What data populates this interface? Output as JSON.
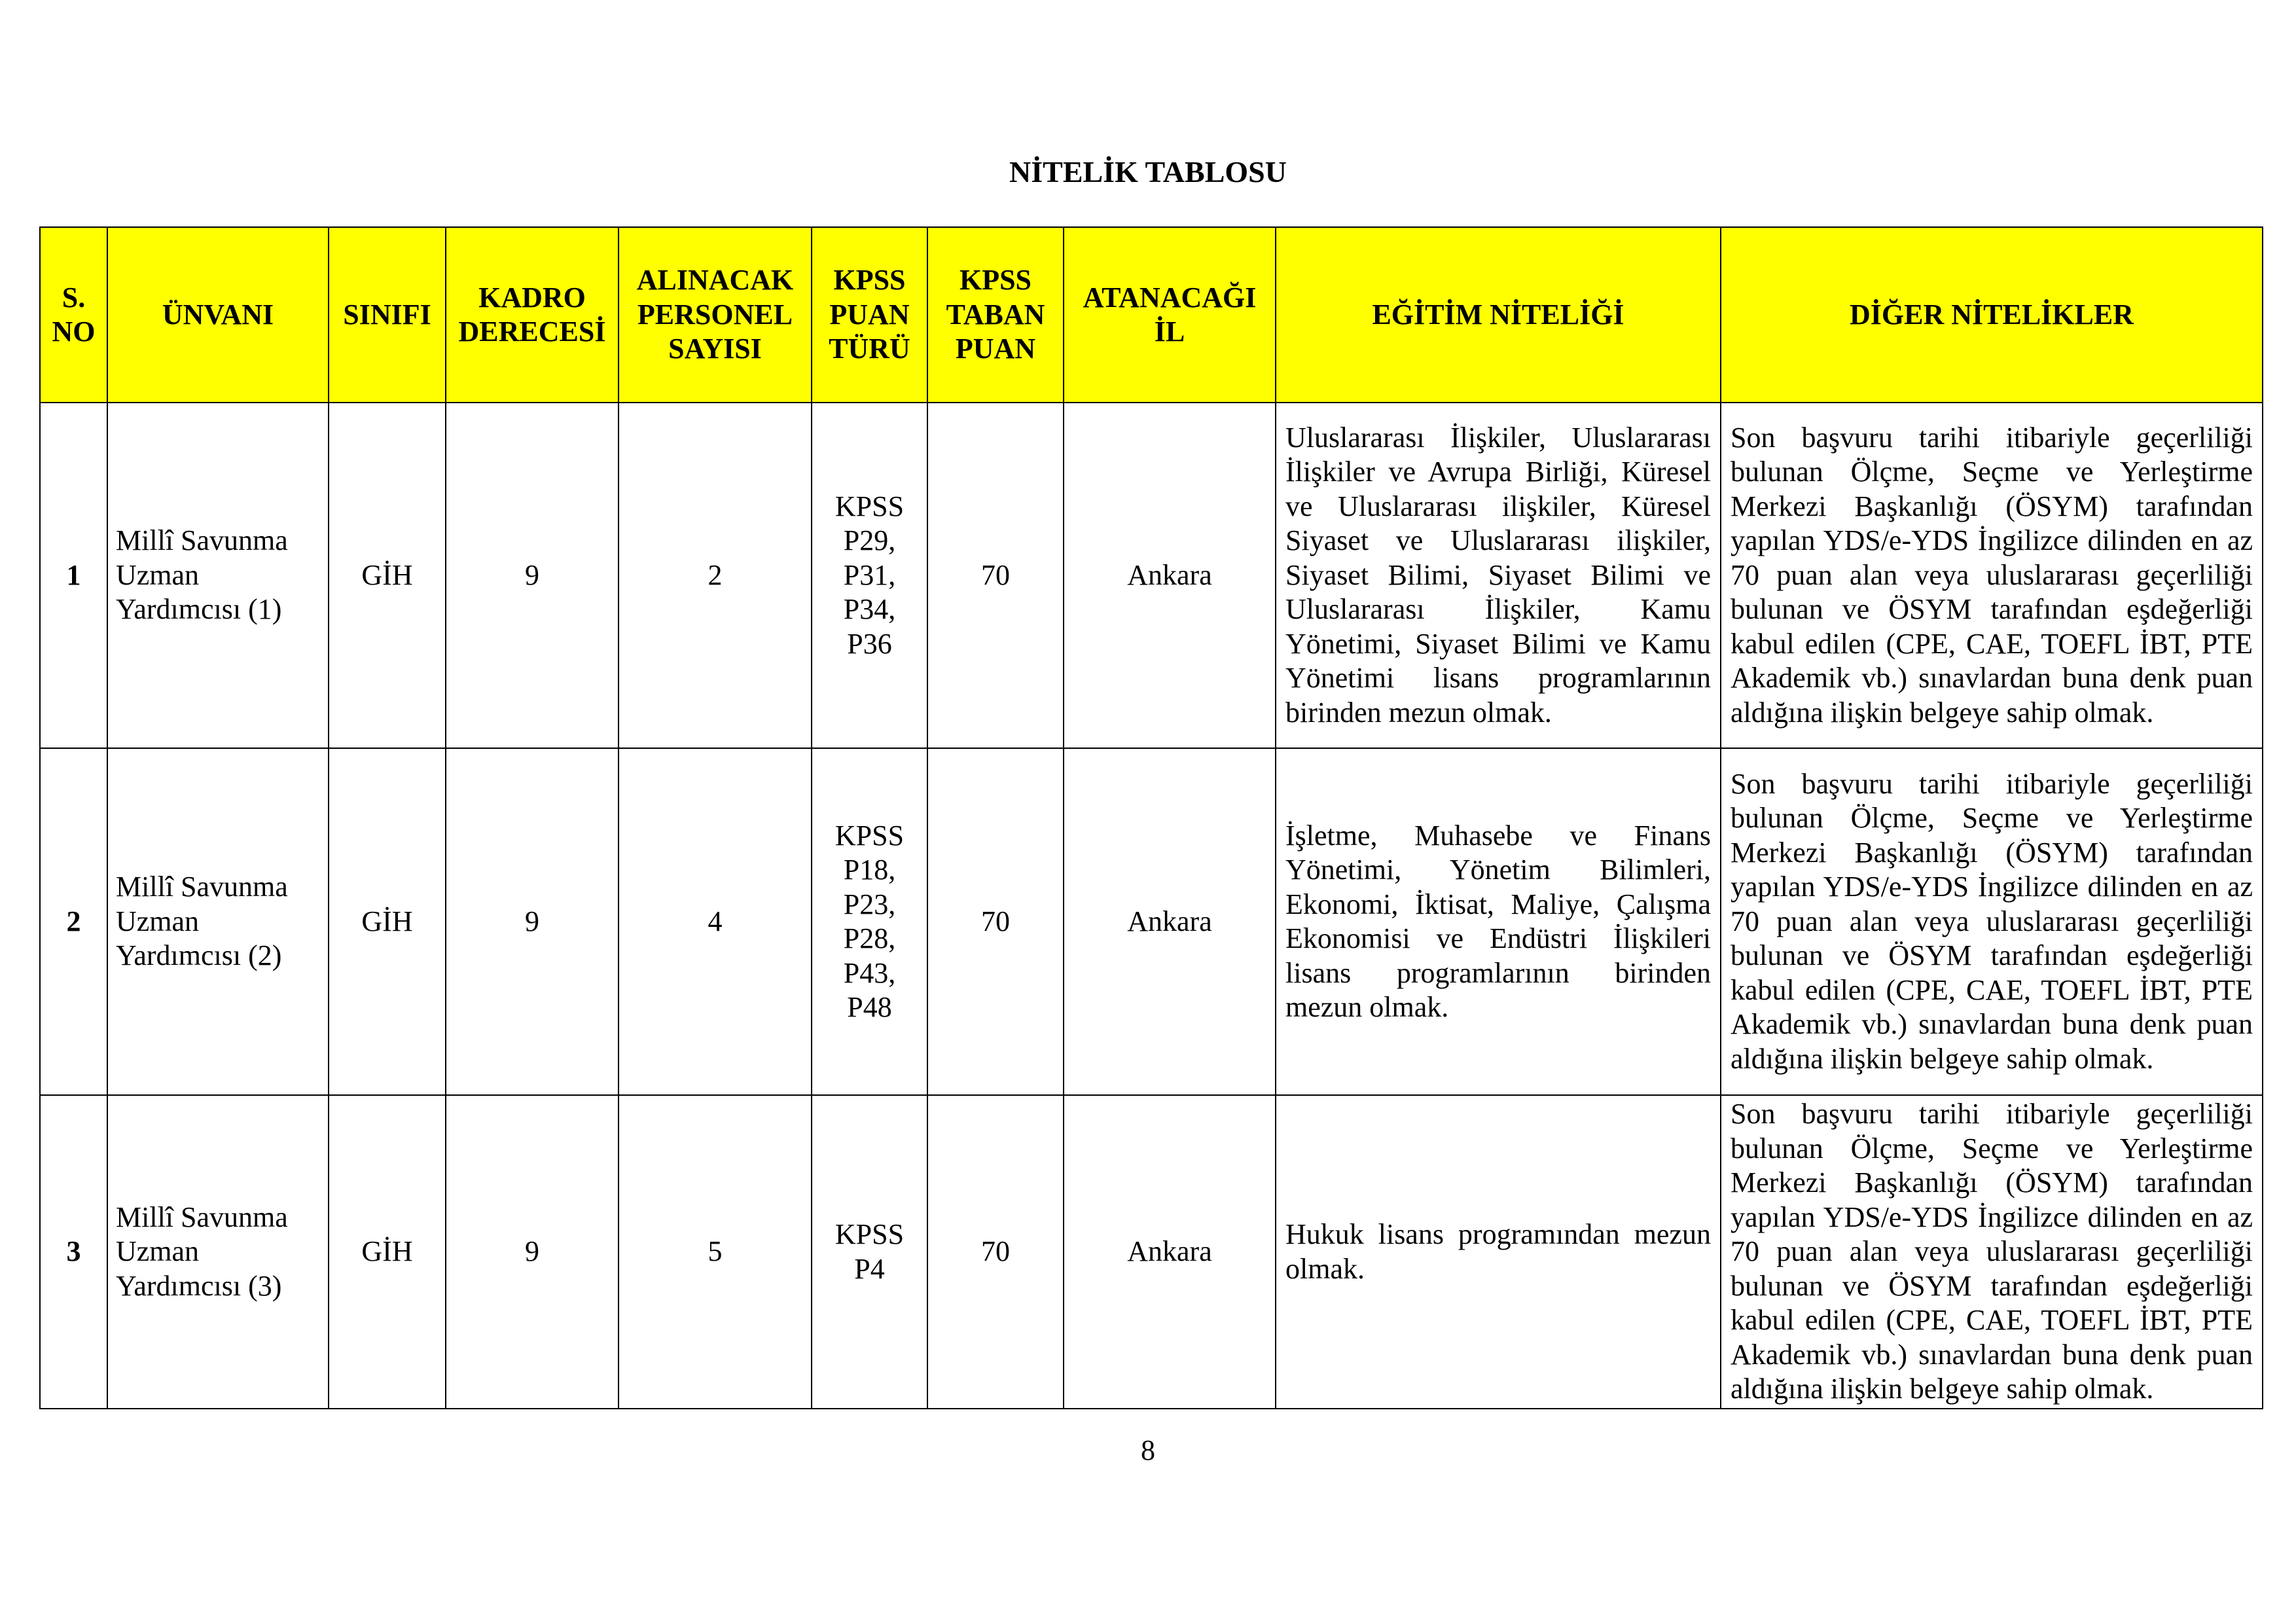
{
  "title": "NİTELİK TABLOSU",
  "colors": {
    "header_bg": "#ffff00",
    "border": "#000000"
  },
  "headers": [
    "S. NO",
    "ÜNVANI",
    "SINIFI",
    "KADRO DERECESİ",
    "ALINACAK PERSONEL SAYISI",
    "KPSS PUAN TÜRÜ",
    "KPSS TABAN PUAN",
    "ATANACAĞI İL",
    "EĞİTİM NİTELİĞİ",
    "DİĞER NİTELİKLER"
  ],
  "rows": [
    {
      "no": "1",
      "unvan": "Millî Savunma Uzman Yardımcısı (1)",
      "sinif": "GİH",
      "derece": "9",
      "sayi": "2",
      "puan_turu": "KPSS P29, P31, P34, P36",
      "taban": "70",
      "il": "Ankara",
      "egitim": "Uluslararası İlişkiler, Uluslararası İlişkiler ve Avrupa Birliği, Küresel ve Uluslararası ilişkiler, Küresel Siyaset ve Uluslararası ilişkiler, Siyaset Bilimi, Siyaset Bilimi ve Uluslararası İlişkiler, Kamu Yönetimi, Siyaset Bilimi ve Kamu Yönetimi lisans programlarının birinden mezun olmak.",
      "diger": "Son başvuru tarihi itibariyle geçerliliği bulunan Ölçme, Seçme ve Yerleştirme Merkezi Başkanlığı (ÖSYM) tarafından yapılan YDS/e-YDS İngilizce dilinden en az 70 puan alan veya uluslararası geçerliliği bulunan ve ÖSYM tarafından eşdeğerliği kabul edilen (CPE, CAE, TOEFL İBT, PTE Akademik vb.) sınavlardan buna denk puan aldığına ilişkin belgeye sahip olmak."
    },
    {
      "no": "2",
      "unvan": "Millî Savunma Uzman Yardımcısı (2)",
      "sinif": "GİH",
      "derece": "9",
      "sayi": "4",
      "puan_turu": "KPSS P18, P23, P28, P43, P48",
      "taban": "70",
      "il": "Ankara",
      "egitim": "İşletme, Muhasebe ve Finans Yönetimi, Yönetim Bilimleri, Ekonomi, İktisat, Maliye, Çalışma Ekonomisi ve Endüstri İlişkileri lisans programlarının birinden mezun olmak.",
      "diger": "Son başvuru tarihi itibariyle geçerliliği bulunan Ölçme, Seçme ve Yerleştirme Merkezi Başkanlığı (ÖSYM) tarafından yapılan YDS/e-YDS İngilizce dilinden en az 70 puan alan veya uluslararası geçerliliği bulunan ve ÖSYM tarafından eşdeğerliği kabul edilen (CPE, CAE, TOEFL İBT, PTE Akademik vb.) sınavlardan buna denk puan aldığına ilişkin belgeye sahip olmak."
    },
    {
      "no": "3",
      "unvan": "Millî Savunma Uzman Yardımcısı (3)",
      "sinif": "GİH",
      "derece": "9",
      "sayi": "5",
      "puan_turu": "KPSS P4",
      "taban": "70",
      "il": "Ankara",
      "egitim": "Hukuk lisans programından mezun olmak.",
      "diger": "Son başvuru tarihi itibariyle geçerliliği bulunan Ölçme, Seçme ve Yerleştirme Merkezi Başkanlığı (ÖSYM) tarafından yapılan YDS/e-YDS İngilizce dilinden en az 70 puan alan veya uluslararası geçerliliği bulunan ve ÖSYM tarafından eşdeğerliği kabul edilen (CPE, CAE, TOEFL İBT, PTE Akademik vb.) sınavlardan buna denk puan aldığına ilişkin belgeye sahip olmak."
    }
  ],
  "page_number": "8"
}
